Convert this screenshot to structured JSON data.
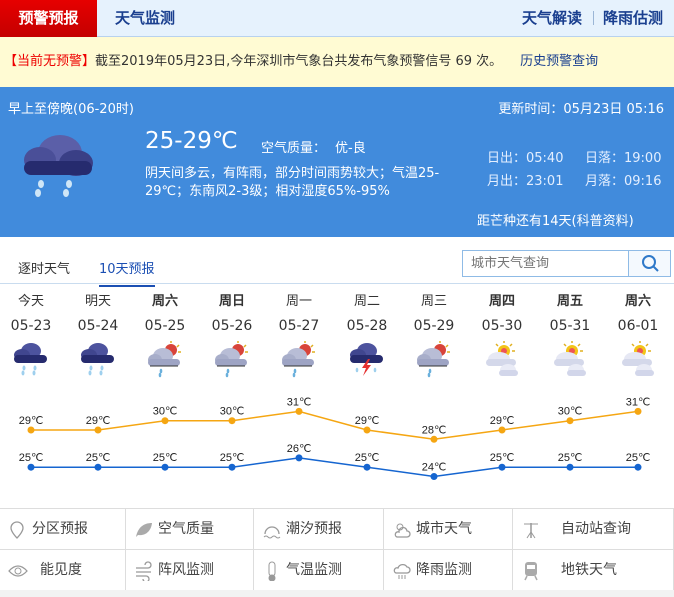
{
  "nav": {
    "active": "预警预报",
    "monitor": "天气监测",
    "interpret": "天气解读",
    "rain": "降雨估测"
  },
  "alert": {
    "status": "【当前无预警】",
    "text": "截至2019年05月23日,今年深圳市气象台共发布气象预警信号 69 次。",
    "history_link": "历史预警查询"
  },
  "today": {
    "period": "早上至傍晚(06-20时)",
    "updated": "更新时间：05月23日 05:16",
    "temp": "25-29℃",
    "aq_label": "空气质量：",
    "aq_value": "优-良",
    "desc1": "阴天间多云，有阵雨，部分时间雨势较大；气温25-",
    "desc2": "29℃；东南风2-3级；相对湿度65%-95%",
    "sunrise": "日出：05:40",
    "sunset": "日落：19:00",
    "moonrise": "月出：23:01",
    "moonset": "月落：09:16",
    "solar_term": "距芒种还有14天(科普资料)",
    "icon": "rain-cloud-icon"
  },
  "tabs": [
    {
      "label": "逐时天气"
    },
    {
      "label": "10天预报"
    }
  ],
  "search": {
    "placeholder": "城市天气查询"
  },
  "days": [
    {
      "week": "今天",
      "date": "05-23",
      "icon": "rain",
      "bold": false
    },
    {
      "week": "明天",
      "date": "05-24",
      "icon": "rain",
      "bold": false
    },
    {
      "week": "周六",
      "date": "05-25",
      "icon": "shower",
      "bold": true
    },
    {
      "week": "周日",
      "date": "05-26",
      "icon": "shower",
      "bold": true
    },
    {
      "week": "周一",
      "date": "05-27",
      "icon": "shower",
      "bold": false
    },
    {
      "week": "周二",
      "date": "05-28",
      "icon": "thunder",
      "bold": false
    },
    {
      "week": "周三",
      "date": "05-29",
      "icon": "shower",
      "bold": false
    },
    {
      "week": "周四",
      "date": "05-30",
      "icon": "partly-cloudy",
      "bold": true
    },
    {
      "week": "周五",
      "date": "05-31",
      "icon": "partly-cloudy",
      "bold": true
    },
    {
      "week": "周六",
      "date": "06-01",
      "icon": "partly-cloudy",
      "bold": true
    }
  ],
  "chart_data": {
    "type": "line",
    "unit": "℃",
    "series": [
      {
        "values": [
          29,
          29,
          30,
          30,
          31,
          29,
          28,
          29,
          30,
          31
        ],
        "color": "#f5a612"
      },
      {
        "values": [
          25,
          25,
          25,
          25,
          26,
          25,
          24,
          25,
          25,
          25
        ],
        "color": "#1565d0"
      }
    ]
  },
  "links": [
    {
      "label": "分区预报",
      "icon": "map-pin-icon"
    },
    {
      "label": "空气质量",
      "icon": "leaf-icon"
    },
    {
      "label": "潮汐预报",
      "icon": "tide-icon"
    },
    {
      "label": "城市天气",
      "icon": "sun-cloud-icon"
    },
    {
      "label": "自动站查询",
      "icon": "weather-station-icon"
    },
    {
      "label": "能见度",
      "icon": "eye-icon"
    },
    {
      "label": "阵风监测",
      "icon": "wind-icon"
    },
    {
      "label": "气温监测",
      "icon": "thermometer-icon"
    },
    {
      "label": "降雨监测",
      "icon": "rain-cloud-icon"
    },
    {
      "label": "地铁天气",
      "icon": "metro-icon"
    }
  ]
}
